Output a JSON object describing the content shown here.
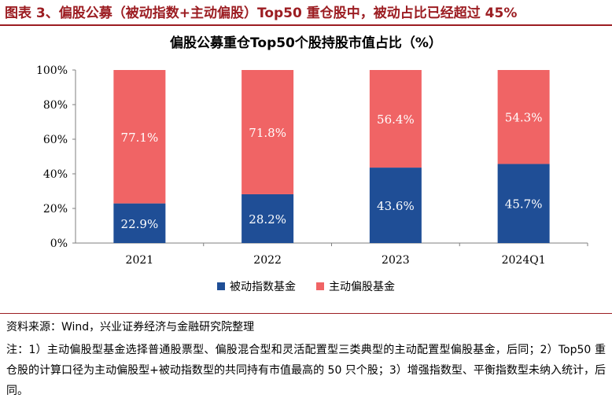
{
  "figure": {
    "title": "图表 3、偏股公募（被动指数+主动偏股）Top50 重仓股中，被动占比已经超过 45%",
    "source": "资料来源：Wind，兴业证券经济与金融研究院整理",
    "note": "注：1）主动偏股型基金选择普通股票型、偏股混合型和灵活配置型三类典型的主动配置型偏股基金，后同；2）Top50 重仓股的计算口径为主动偏股型+被动指数型的共同持有市值最高的 50 只个股；3）增强指数型、平衡指数型未纳入统计，后同。"
  },
  "colors": {
    "accent": "#9c1d22",
    "passive": "#1f4e96",
    "active": "#f06465"
  },
  "chart_data": {
    "type": "bar",
    "stacked": true,
    "title": "偏股公募重仓Top50个股持股市值占比（%）",
    "categories": [
      "2021",
      "2022",
      "2023",
      "2024Q1"
    ],
    "series": [
      {
        "name": "被动指数基金",
        "values": [
          22.9,
          28.2,
          43.6,
          45.7
        ],
        "labels": [
          "22.9%",
          "28.2%",
          "43.6%",
          "45.7%"
        ],
        "color": "#1f4e96"
      },
      {
        "name": "主动偏股基金",
        "values": [
          77.1,
          71.8,
          56.4,
          54.3
        ],
        "labels": [
          "77.1%",
          "71.8%",
          "56.4%",
          "54.3%"
        ],
        "color": "#f06465"
      }
    ],
    "ylim": [
      0,
      100
    ],
    "yticks": [
      "0%",
      "20%",
      "40%",
      "60%",
      "80%",
      "100%"
    ],
    "grid": false,
    "legend": "bottom"
  }
}
